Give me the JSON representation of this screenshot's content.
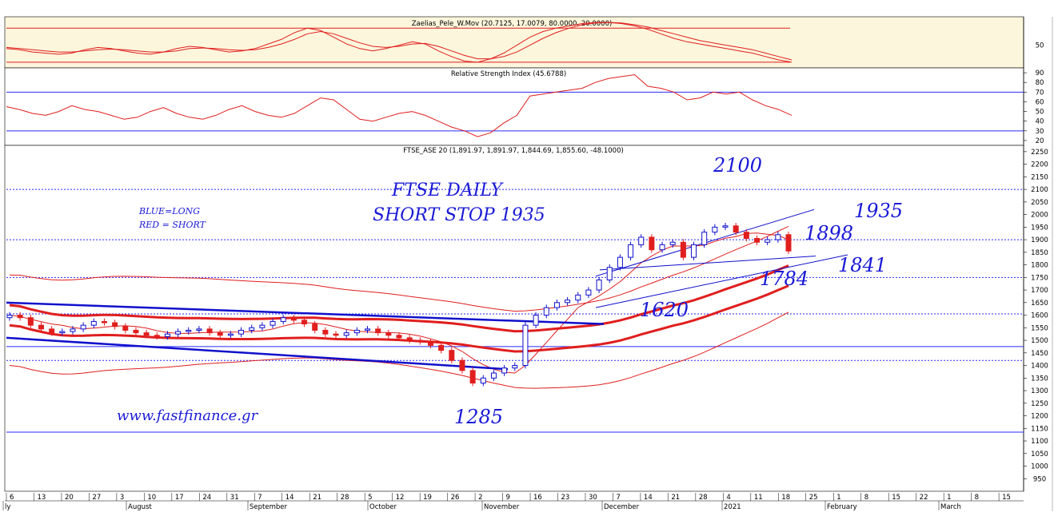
{
  "colors": {
    "panel_bg_osc": "#fcf6dc",
    "grid_blue": "#2a2aff",
    "red": "#e01e1e",
    "blue": "#1010cc",
    "annot": "#1a1ad6"
  },
  "chart_data": [
    {
      "type": "line",
      "panel": "oscillator",
      "title": "Zaelias_Pele_W.Mov (20.7125, 17.0079, 80.0000, 20.0000)",
      "yticks": [
        50
      ],
      "ylim": [
        10,
        100
      ],
      "hlines": [
        80,
        20
      ],
      "series": [
        {
          "values": [
            44,
            42,
            38,
            36,
            34,
            36,
            42,
            46,
            44,
            40,
            36,
            34,
            38,
            44,
            48,
            46,
            42,
            38,
            40,
            44,
            52,
            60,
            72,
            80,
            76,
            64,
            52,
            44,
            40,
            44,
            50,
            56,
            52,
            40,
            30,
            22,
            20,
            26,
            36,
            50,
            64,
            74,
            80,
            84,
            88,
            90,
            90,
            88,
            84,
            78,
            70,
            62,
            56,
            52,
            48,
            44,
            40,
            36,
            30,
            24,
            20
          ]
        },
        {
          "values": [
            46,
            44,
            42,
            40,
            38,
            38,
            40,
            42,
            43,
            42,
            40,
            38,
            38,
            40,
            44,
            45,
            44,
            42,
            41,
            42,
            46,
            52,
            60,
            70,
            74,
            70,
            62,
            54,
            48,
            46,
            48,
            52,
            53,
            48,
            40,
            32,
            26,
            26,
            30,
            38,
            50,
            62,
            72,
            80,
            86,
            89,
            90,
            89,
            86,
            82,
            76,
            70,
            64,
            58,
            54,
            50,
            46,
            42,
            36,
            30,
            24
          ]
        }
      ]
    },
    {
      "type": "line",
      "panel": "rsi",
      "title": "Relative Strength Index (45.6788)",
      "yticks": [
        20,
        30,
        40,
        50,
        60,
        70,
        80,
        90
      ],
      "ylim": [
        15,
        95
      ],
      "hlines": [
        70,
        30
      ],
      "series": [
        {
          "values": [
            55,
            52,
            48,
            46,
            50,
            56,
            52,
            50,
            46,
            42,
            44,
            50,
            54,
            48,
            44,
            42,
            46,
            52,
            56,
            50,
            46,
            44,
            48,
            56,
            64,
            62,
            52,
            42,
            40,
            44,
            48,
            50,
            46,
            40,
            34,
            30,
            24,
            28,
            38,
            46,
            66,
            68,
            70,
            72,
            74,
            80,
            84,
            86,
            88,
            76,
            74,
            70,
            62,
            64,
            70,
            68,
            70,
            62,
            56,
            52,
            46
          ]
        }
      ]
    },
    {
      "type": "candlestick",
      "panel": "price",
      "title": "FTSE_ASE 20 (1,891.97, 1,891.97, 1,844.69, 1,855.60, -48.1000)",
      "yticks": [
        950,
        1000,
        1050,
        1100,
        1150,
        1200,
        1250,
        1300,
        1350,
        1400,
        1450,
        1500,
        1550,
        1600,
        1650,
        1700,
        1750,
        1800,
        1850,
        1900,
        1950,
        2000,
        2050,
        2100,
        2150,
        2200,
        2250
      ],
      "ylim": [
        900,
        2275
      ],
      "hlines_solid": [
        1475,
        1135
      ],
      "hlines_dotted": [
        2100,
        1900,
        1750,
        1605,
        1420
      ],
      "xticks": [
        "6",
        "13",
        "20",
        "27",
        "3",
        "10",
        "17",
        "24",
        "31",
        "7",
        "14",
        "21",
        "28",
        "5",
        "12",
        "19",
        "26",
        "2",
        "9",
        "16",
        "23",
        "30",
        "7",
        "14",
        "21",
        "28",
        "4",
        "11",
        "18",
        "25",
        "1",
        "8",
        "15",
        "22",
        "1",
        "8",
        "15"
      ],
      "months": [
        "ly",
        "August",
        "September",
        "October",
        "November",
        "December",
        "2021",
        "February",
        "March"
      ],
      "closes": [
        1600,
        1590,
        1560,
        1545,
        1530,
        1535,
        1545,
        1560,
        1575,
        1570,
        1555,
        1540,
        1530,
        1520,
        1515,
        1525,
        1535,
        1540,
        1545,
        1530,
        1520,
        1525,
        1540,
        1550,
        1560,
        1575,
        1590,
        1580,
        1565,
        1540,
        1525,
        1520,
        1530,
        1540,
        1545,
        1530,
        1520,
        1510,
        1500,
        1495,
        1480,
        1460,
        1420,
        1380,
        1330,
        1350,
        1370,
        1390,
        1400,
        1560,
        1600,
        1630,
        1650,
        1660,
        1680,
        1700,
        1740,
        1790,
        1830,
        1880,
        1910,
        1860,
        1880,
        1890,
        1830,
        1880,
        1930,
        1950,
        1955,
        1930,
        1905,
        1890,
        1900,
        1920,
        1855
      ],
      "annotations": [
        "2100",
        "1935",
        "1898",
        "1841",
        "1784",
        "1620",
        "1285",
        "FTSE DAILY",
        "SHORT STOP 1935",
        "BLUE=LONG",
        "RED = SHORT",
        "www.fastfinance.gr"
      ]
    }
  ],
  "price_axis": {
    "labels": [
      "950",
      "1000",
      "1050",
      "1100",
      "1150",
      "1200",
      "1250",
      "1300",
      "1350",
      "1400",
      "1450",
      "1500",
      "1550",
      "1600",
      "1650",
      "1700",
      "1750",
      "1800",
      "1850",
      "1900",
      "1950",
      "2000",
      "2050",
      "2100",
      "2150",
      "2200",
      "2250"
    ]
  },
  "rsi_axis": {
    "labels": [
      "20",
      "30",
      "40",
      "50",
      "60",
      "70",
      "80",
      "90"
    ]
  },
  "osc_axis": {
    "labels": [
      "50"
    ]
  },
  "titles": {
    "osc": "Zaelias_Pele_W.Mov (20.7125, 17.0079, 80.0000, 20.0000)",
    "rsi": "Relative Strength Index (45.6788)",
    "price": "FTSE_ASE 20 (1,891.97, 1,891.97, 1,844.69, 1,855.60, -48.1000)"
  },
  "annotations": {
    "a2100": "2100",
    "a1935": "1935",
    "a1898": "1898",
    "a1841": "1841",
    "a1784": "1784",
    "a1620": "1620",
    "a1285": "1285",
    "heading1": "FTSE DAILY",
    "heading2": "SHORT STOP 1935",
    "legend1": "BLUE=LONG",
    "legend2": "RED = SHORT",
    "site": "www.fastfinance.gr"
  },
  "xaxis": {
    "days": [
      "6",
      "13",
      "20",
      "27",
      "3",
      "10",
      "17",
      "24",
      "31",
      "7",
      "14",
      "21",
      "28",
      "5",
      "12",
      "19",
      "26",
      "2",
      "9",
      "16",
      "23",
      "30",
      "7",
      "14",
      "21",
      "28",
      "4",
      "11",
      "18",
      "25",
      "1",
      "8",
      "15",
      "22",
      "1",
      "8",
      "15"
    ],
    "months": [
      "ly",
      "August",
      "September",
      "October",
      "November",
      "December",
      "2021",
      "February",
      "March"
    ]
  }
}
